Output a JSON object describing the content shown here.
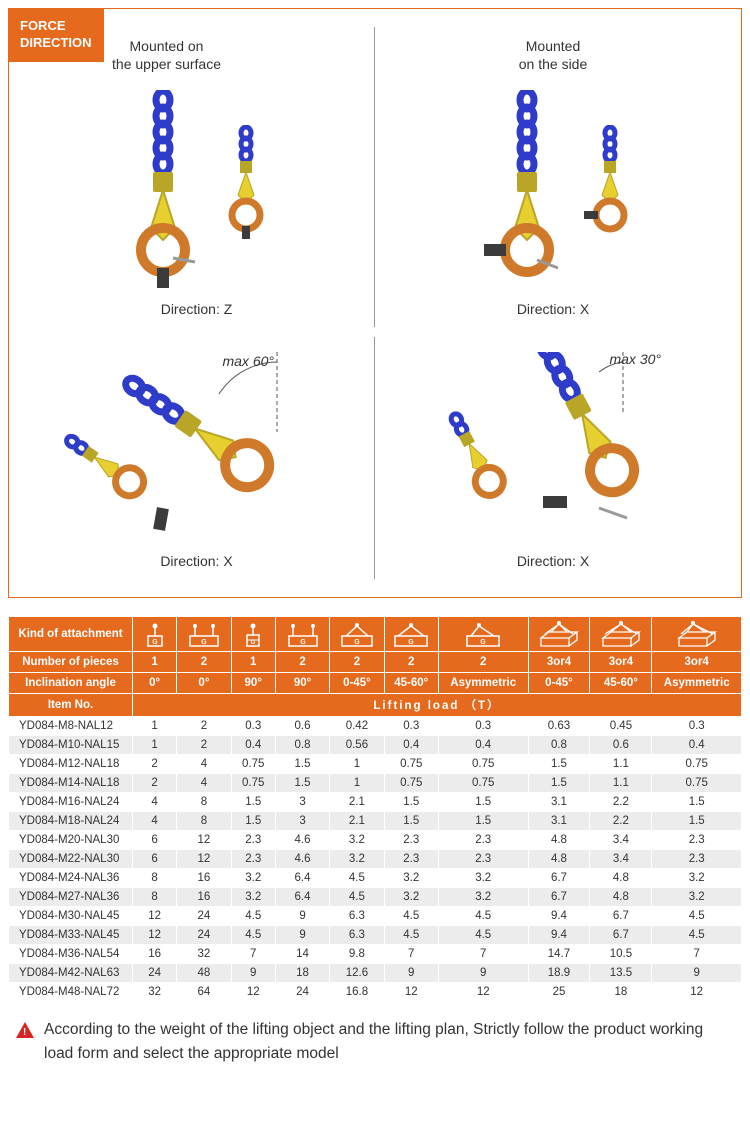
{
  "force_badge": "FORCE\nDIRECTION",
  "diagrams": {
    "upper_left": {
      "mount_text": "Mounted on\nthe upper surface",
      "caption": "Direction: Z"
    },
    "upper_right": {
      "mount_text": "Mounted\non the side",
      "caption": "Direction: X"
    },
    "lower_left": {
      "angle": "max 60°",
      "caption": "Direction: X"
    },
    "lower_right": {
      "angle": "max 30°",
      "caption": "Direction: X"
    }
  },
  "colors": {
    "chain": "#2e3cc9",
    "connector": "#d8c22a",
    "ring": "#cf7a2a",
    "bolt": "#3b3b3b",
    "accent": "#e56a1e",
    "row_alt": "#ececec",
    "warn": "#d82323"
  },
  "table": {
    "header_rows": {
      "attachment": "Kind of attachment",
      "pieces_label": "Number of pieces",
      "angle_label": "Inclination angle",
      "itemno_label": "Item No.",
      "lifting_label": "Lifting load   （T）"
    },
    "pieces": [
      "1",
      "2",
      "1",
      "2",
      "2",
      "2",
      "2",
      "3or4",
      "3or4",
      "3or4"
    ],
    "angles": [
      "0°",
      "0°",
      "90°",
      "90°",
      "0-45°",
      "45-60°",
      "Asymmetric",
      "0-45°",
      "45-60°",
      "Asymmetric"
    ],
    "columns_icons": [
      "single-g",
      "double-g",
      "single-g-side",
      "double-g-side",
      "double-ang",
      "double-ang",
      "double-ang",
      "quad-box",
      "quad-box",
      "quad-box"
    ],
    "rows": [
      {
        "item": "YD084-M8-NAL12",
        "v": [
          "1",
          "2",
          "0.3",
          "0.6",
          "0.42",
          "0.3",
          "0.3",
          "0.63",
          "0.45",
          "0.3"
        ]
      },
      {
        "item": "YD084-M10-NAL15",
        "v": [
          "1",
          "2",
          "0.4",
          "0.8",
          "0.56",
          "0.4",
          "0.4",
          "0.8",
          "0.6",
          "0.4"
        ]
      },
      {
        "item": "YD084-M12-NAL18",
        "v": [
          "2",
          "4",
          "0.75",
          "1.5",
          "1",
          "0.75",
          "0.75",
          "1.5",
          "1.1",
          "0.75"
        ]
      },
      {
        "item": "YD084-M14-NAL18",
        "v": [
          "2",
          "4",
          "0.75",
          "1.5",
          "1",
          "0.75",
          "0.75",
          "1.5",
          "1.1",
          "0.75"
        ]
      },
      {
        "item": "YD084-M16-NAL24",
        "v": [
          "4",
          "8",
          "1.5",
          "3",
          "2.1",
          "1.5",
          "1.5",
          "3.1",
          "2.2",
          "1.5"
        ]
      },
      {
        "item": "YD084-M18-NAL24",
        "v": [
          "4",
          "8",
          "1.5",
          "3",
          "2.1",
          "1.5",
          "1.5",
          "3.1",
          "2.2",
          "1.5"
        ]
      },
      {
        "item": "YD084-M20-NAL30",
        "v": [
          "6",
          "12",
          "2.3",
          "4.6",
          "3.2",
          "2.3",
          "2.3",
          "4.8",
          "3.4",
          "2.3"
        ]
      },
      {
        "item": "YD084-M22-NAL30",
        "v": [
          "6",
          "12",
          "2.3",
          "4.6",
          "3.2",
          "2.3",
          "2.3",
          "4.8",
          "3.4",
          "2.3"
        ]
      },
      {
        "item": "YD084-M24-NAL36",
        "v": [
          "8",
          "16",
          "3.2",
          "6.4",
          "4.5",
          "3.2",
          "3.2",
          "6.7",
          "4.8",
          "3.2"
        ]
      },
      {
        "item": "YD084-M27-NAL36",
        "v": [
          "8",
          "16",
          "3.2",
          "6.4",
          "4.5",
          "3.2",
          "3.2",
          "6.7",
          "4.8",
          "3.2"
        ]
      },
      {
        "item": "YD084-M30-NAL45",
        "v": [
          "12",
          "24",
          "4.5",
          "9",
          "6.3",
          "4.5",
          "4.5",
          "9.4",
          "6.7",
          "4.5"
        ]
      },
      {
        "item": "YD084-M33-NAL45",
        "v": [
          "12",
          "24",
          "4.5",
          "9",
          "6.3",
          "4.5",
          "4.5",
          "9.4",
          "6.7",
          "4.5"
        ]
      },
      {
        "item": "YD084-M36-NAL54",
        "v": [
          "16",
          "32",
          "7",
          "14",
          "9.8",
          "7",
          "7",
          "14.7",
          "10.5",
          "7"
        ]
      },
      {
        "item": "YD084-M42-NAL63",
        "v": [
          "24",
          "48",
          "9",
          "18",
          "12.6",
          "9",
          "9",
          "18.9",
          "13.5",
          "9"
        ]
      },
      {
        "item": "YD084-M48-NAL72",
        "v": [
          "32",
          "64",
          "12",
          "24",
          "16.8",
          "12",
          "12",
          "25",
          "18",
          "12"
        ]
      }
    ]
  },
  "warning_text": "According to the weight of the lifting object and the lifting plan, Strictly follow the product working load form and select the appropriate model"
}
